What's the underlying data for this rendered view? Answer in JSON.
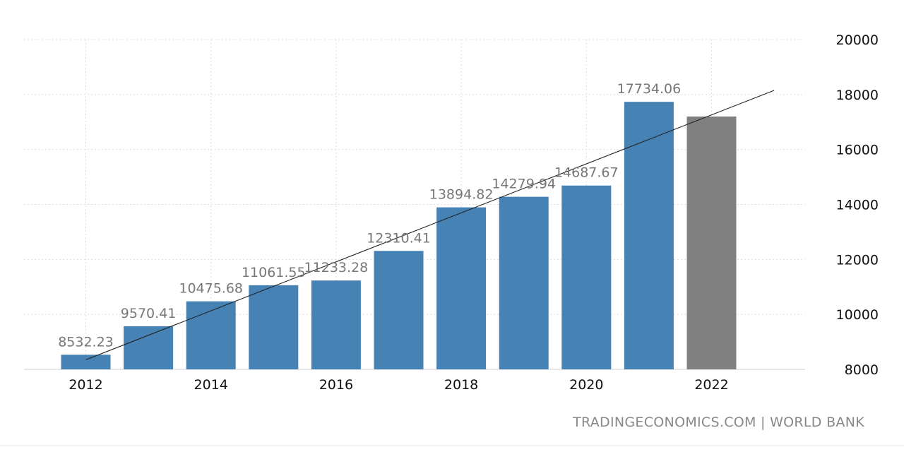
{
  "chart_data": {
    "type": "bar",
    "x": [
      2012,
      2013,
      2014,
      2015,
      2016,
      2017,
      2018,
      2019,
      2020,
      2021,
      2022
    ],
    "values": [
      8532.23,
      9570.41,
      10475.68,
      11061.55,
      11233.28,
      12310.41,
      13894.82,
      14279.94,
      14687.67,
      17734.06,
      17200
    ],
    "data_labels": [
      "8532.23",
      "9570.41",
      "10475.68",
      "11061.55",
      "11233.28",
      "12310.41",
      "13894.82",
      "14279.94",
      "14687.67",
      "17734.06",
      ""
    ],
    "forecast_index": 10,
    "trendline": {
      "from": [
        2012,
        8350
      ],
      "to": [
        2023,
        18150
      ]
    },
    "xticks": [
      2012,
      2014,
      2016,
      2018,
      2020,
      2022
    ],
    "yticks": [
      8000,
      10000,
      12000,
      14000,
      16000,
      18000,
      20000
    ],
    "ylim": [
      8000,
      20000
    ],
    "y_axis_side": "right",
    "grid": true,
    "colors": {
      "bar": "#4682b4",
      "forecast_bar": "#808080",
      "trendline": "#222222"
    }
  },
  "source": "TRADINGECONOMICS.COM | WORLD BANK"
}
